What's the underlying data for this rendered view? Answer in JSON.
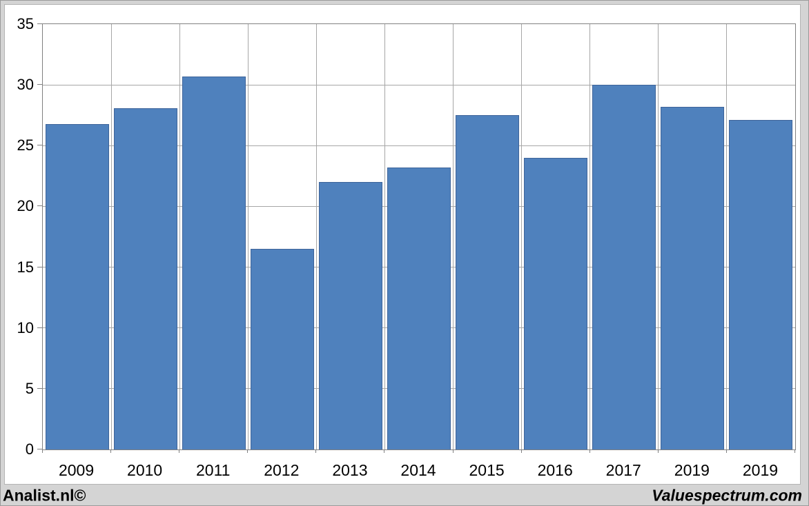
{
  "footer": {
    "left_label": "Analist.nl©",
    "right_label": "Valuespectrum.com"
  },
  "colors": {
    "bar_fill": "#4f81bd",
    "bar_border": "#3d6399",
    "gridline": "#a6a6a6",
    "plot_border": "#808080",
    "page_background": "#d4d4d4",
    "panel_background": "#ffffff",
    "text": "#000000"
  },
  "chart_data": {
    "type": "bar",
    "title": "",
    "xlabel": "",
    "ylabel": "",
    "categories": [
      "2009",
      "2010",
      "2011",
      "2012",
      "2013",
      "2014",
      "2015",
      "2016",
      "2017",
      "2019",
      "2019"
    ],
    "values": [
      26.8,
      28.1,
      30.7,
      16.5,
      22.0,
      23.2,
      27.5,
      24.0,
      30.0,
      28.2,
      27.1
    ],
    "ylim": [
      0,
      35
    ],
    "yticks": [
      0,
      5,
      10,
      15,
      20,
      25,
      30,
      35
    ],
    "grid": true,
    "legend": "none"
  }
}
